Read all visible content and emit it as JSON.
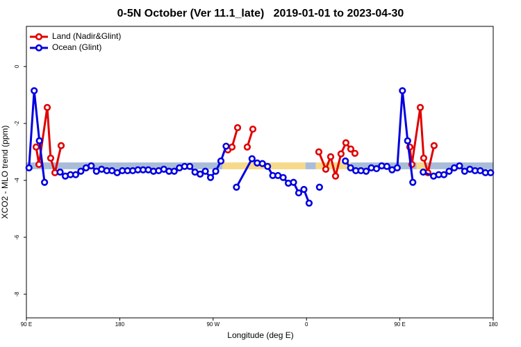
{
  "chart_data": {
    "type": "line",
    "title": "0-5N October (Ver 11.1_late)   2019-01-01 to 2023-04-30",
    "x_label": "Longitude (deg E)",
    "y_label": "XCO2 - MLO trend (ppm)",
    "xlim": [
      90,
      540
    ],
    "ylim": [
      -8.83,
      1.41
    ],
    "xticks": [
      {
        "value": 90,
        "label": "90 E"
      },
      180,
      {
        "value": 270,
        "label": "90 W"
      },
      {
        "value": 360,
        "label": "0"
      },
      {
        "value": 450,
        "label": "90 E"
      },
      {
        "value": 540,
        "label": "180"
      }
    ],
    "yticks": [
      0,
      -2,
      -4,
      -6,
      -8
    ],
    "legend": "top-left",
    "band_y": [
      -3.61,
      -3.37
    ],
    "bands": [
      {
        "x": [
          90,
          279
        ],
        "color": "#a9bdd9"
      },
      {
        "x": [
          279,
          359
        ],
        "color": "#f6d98a"
      },
      {
        "x": [
          359,
          369
        ],
        "color": "#a9bdd9"
      },
      {
        "x": [
          369,
          403
        ],
        "color": "#f6d98a"
      },
      {
        "x": [
          403,
          466
        ],
        "color": "#a9bdd9"
      },
      {
        "x": [
          466,
          476
        ],
        "color": "#f6d98a"
      },
      {
        "x": [
          476,
          540
        ],
        "color": "#a9bdd9"
      }
    ],
    "series": [
      {
        "name": "Land (Nadir&Glint)",
        "color": "#e00000",
        "x": [
          99.4,
          102.1,
          110.1,
          113.4,
          117.5,
          123.5,
          200,
          284.2,
          288.2,
          293.6,
          298,
          302.9,
          308.3,
          340,
          371.9,
          378.6,
          383.3,
          388,
          393.3,
          398,
          402.7,
          406.7,
          430,
          459.6,
          461.6,
          469.7,
          473,
          477,
          483
        ],
        "values": [
          -2.83,
          -3.44,
          -1.44,
          -3.22,
          -3.73,
          -2.78,
          null,
          -2.93,
          -2.83,
          -2.15,
          null,
          -2.83,
          -2.2,
          null,
          -3.0,
          -3.61,
          -3.17,
          -3.85,
          -3.07,
          -2.68,
          -2.9,
          -3.05,
          null,
          -2.83,
          -3.44,
          -1.44,
          -3.22,
          -3.73,
          -2.78
        ]
      },
      {
        "name": "Ocean (Glint)",
        "color": "#0000e0",
        "x": [
          92.5,
          97.5,
          102.5,
          107.5,
          112.5,
          122.5,
          127.5,
          132.5,
          137.5,
          142.5,
          147.5,
          152.5,
          157.5,
          162.5,
          167.5,
          172.5,
          177.5,
          182.5,
          187.5,
          192.5,
          197.5,
          202.5,
          207.5,
          212.5,
          217.5,
          222.5,
          227.5,
          232.5,
          237.5,
          242.5,
          247.5,
          252.5,
          257.5,
          262.5,
          267.5,
          272.5,
          277.5,
          282.5,
          287.5,
          292.5,
          307.5,
          312.5,
          317.5,
          322.5,
          327.5,
          332.5,
          337.5,
          342.5,
          347.5,
          352.5,
          357.5,
          362.5,
          367.5,
          372.5,
          392.5,
          397.5,
          402.5,
          407.5,
          412.5,
          417.5,
          422.5,
          427.5,
          432.5,
          437.5,
          442.5,
          447.5,
          452.5,
          457.5,
          462.5,
          467.5,
          472.5,
          482.5,
          487.5,
          492.5,
          497.5,
          502.5,
          507.5,
          512.5,
          517.5,
          522.5,
          527.5,
          532.5,
          537.5
        ],
        "values": [
          -3.56,
          -0.85,
          -2.61,
          -4.07,
          null,
          -3.71,
          -3.85,
          -3.8,
          -3.8,
          -3.68,
          -3.56,
          -3.49,
          -3.68,
          -3.61,
          -3.66,
          -3.66,
          -3.73,
          -3.66,
          -3.66,
          -3.66,
          -3.63,
          -3.63,
          -3.63,
          -3.68,
          -3.66,
          -3.61,
          -3.68,
          -3.68,
          -3.56,
          -3.51,
          -3.51,
          -3.71,
          -3.78,
          -3.68,
          -3.9,
          -3.68,
          -3.32,
          -2.8,
          null,
          -4.24,
          -3.24,
          -3.39,
          -3.41,
          -3.51,
          -3.83,
          -3.83,
          -3.9,
          -4.1,
          -4.07,
          -4.44,
          -4.32,
          -4.8,
          null,
          -4.24,
          null,
          -3.32,
          -3.56,
          -3.66,
          -3.66,
          -3.68,
          -3.56,
          -3.59,
          -3.49,
          -3.51,
          -3.63,
          -3.56,
          -0.85,
          -2.61,
          -4.07,
          null,
          -3.71,
          -3.85,
          -3.8,
          -3.8,
          -3.68,
          -3.56,
          -3.49,
          -3.68,
          -3.61,
          -3.66,
          -3.66,
          -3.73,
          -3.73
        ]
      }
    ]
  }
}
